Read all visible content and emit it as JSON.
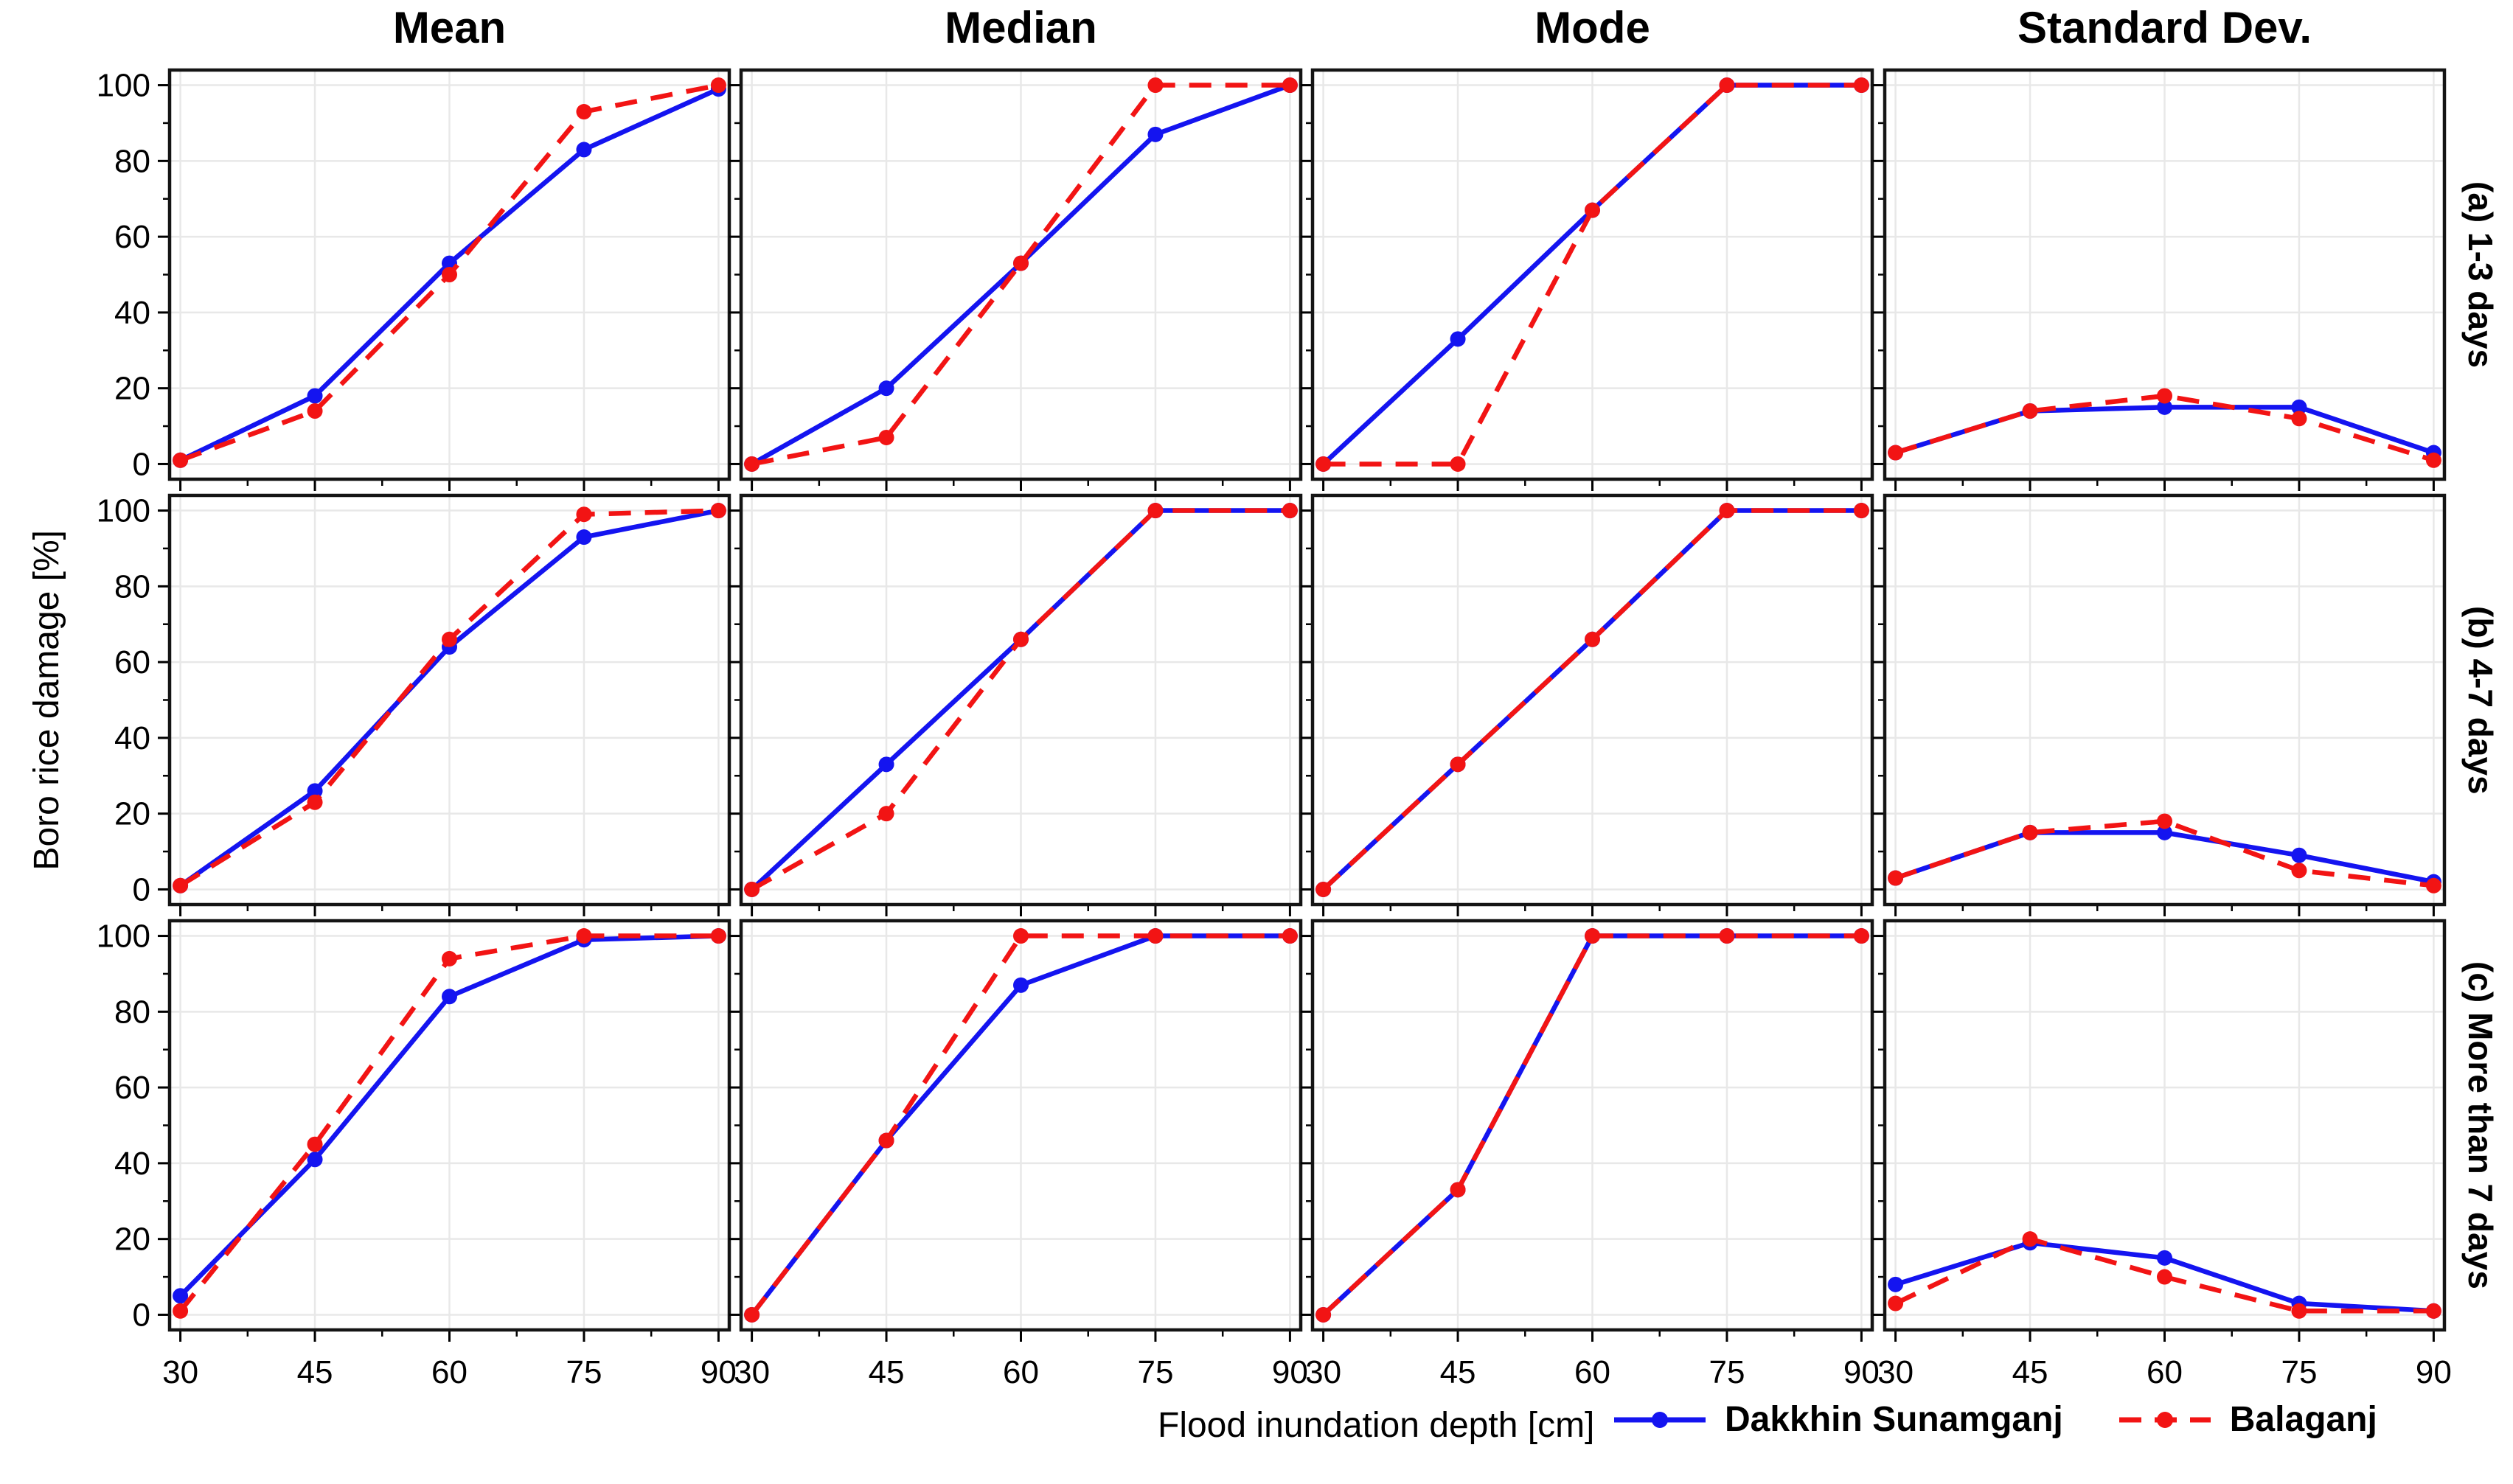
{
  "figure": {
    "col_titles": [
      "Mean",
      "Median",
      "Mode",
      "Standard Dev."
    ],
    "row_labels": [
      "(a) 1-3 days",
      "(b) 4-7 days",
      "(c) More than 7 days"
    ],
    "xlabel": "Flood inundation depth [cm]",
    "ylabel": "Boro rice damage [%]",
    "x_ticks": [
      30,
      45,
      60,
      75,
      90
    ],
    "y_ticks": [
      0,
      20,
      40,
      60,
      80,
      100
    ],
    "x_range": [
      30,
      90
    ],
    "y_range": [
      0,
      100
    ],
    "grid": "on",
    "legend_position": "bottom-right"
  },
  "legend": {
    "entries": [
      {
        "label": "Dakkhin Sunamganj",
        "color": "#1414f0",
        "style": "solid"
      },
      {
        "label": "Balaganj",
        "color": "#f21414",
        "style": "dashed"
      }
    ]
  },
  "colors": {
    "blue": "#1414f0",
    "red": "#f21414",
    "grid": "#e8e8e8",
    "frame": "#141414",
    "background": "#ffffff"
  },
  "chart_data": [
    {
      "type": "line",
      "row": 0,
      "col": 0,
      "row_label": "(a) 1-3 days",
      "col_title": "Mean",
      "x": [
        30,
        45,
        60,
        75,
        90
      ],
      "series": [
        {
          "name": "Dakkhin Sunamganj",
          "values": [
            1,
            18,
            53,
            83,
            99
          ]
        },
        {
          "name": "Balaganj",
          "values": [
            1,
            14,
            50,
            93,
            100
          ]
        }
      ]
    },
    {
      "type": "line",
      "row": 0,
      "col": 1,
      "row_label": "(a) 1-3 days",
      "col_title": "Median",
      "x": [
        30,
        45,
        60,
        75,
        90
      ],
      "series": [
        {
          "name": "Dakkhin Sunamganj",
          "values": [
            0,
            20,
            53,
            87,
            100
          ]
        },
        {
          "name": "Balaganj",
          "values": [
            0,
            7,
            53,
            100,
            100
          ]
        }
      ]
    },
    {
      "type": "line",
      "row": 0,
      "col": 2,
      "row_label": "(a) 1-3 days",
      "col_title": "Mode",
      "x": [
        30,
        45,
        60,
        75,
        90
      ],
      "series": [
        {
          "name": "Dakkhin Sunamganj",
          "values": [
            0,
            33,
            67,
            100,
            100
          ]
        },
        {
          "name": "Balaganj",
          "values": [
            0,
            0,
            67,
            100,
            100
          ]
        }
      ]
    },
    {
      "type": "line",
      "row": 0,
      "col": 3,
      "row_label": "(a) 1-3 days",
      "col_title": "Standard Dev.",
      "x": [
        30,
        45,
        60,
        75,
        90
      ],
      "series": [
        {
          "name": "Dakkhin Sunamganj",
          "values": [
            3,
            14,
            15,
            15,
            3
          ]
        },
        {
          "name": "Balaganj",
          "values": [
            3,
            14,
            18,
            12,
            1
          ]
        }
      ]
    },
    {
      "type": "line",
      "row": 1,
      "col": 0,
      "row_label": "(b) 4-7 days",
      "col_title": "Mean",
      "x": [
        30,
        45,
        60,
        75,
        90
      ],
      "series": [
        {
          "name": "Dakkhin Sunamganj",
          "values": [
            1,
            26,
            64,
            93,
            100
          ]
        },
        {
          "name": "Balaganj",
          "values": [
            1,
            23,
            66,
            99,
            100
          ]
        }
      ]
    },
    {
      "type": "line",
      "row": 1,
      "col": 1,
      "row_label": "(b) 4-7 days",
      "col_title": "Median",
      "x": [
        30,
        45,
        60,
        75,
        90
      ],
      "series": [
        {
          "name": "Dakkhin Sunamganj",
          "values": [
            0,
            33,
            66,
            100,
            100
          ]
        },
        {
          "name": "Balaganj",
          "values": [
            0,
            20,
            66,
            100,
            100
          ]
        }
      ]
    },
    {
      "type": "line",
      "row": 1,
      "col": 2,
      "row_label": "(b) 4-7 days",
      "col_title": "Mode",
      "x": [
        30,
        45,
        60,
        75,
        90
      ],
      "series": [
        {
          "name": "Dakkhin Sunamganj",
          "values": [
            0,
            33,
            66,
            100,
            100
          ]
        },
        {
          "name": "Balaganj",
          "values": [
            0,
            33,
            66,
            100,
            100
          ]
        }
      ]
    },
    {
      "type": "line",
      "row": 1,
      "col": 3,
      "row_label": "(b) 4-7 days",
      "col_title": "Standard Dev.",
      "x": [
        30,
        45,
        60,
        75,
        90
      ],
      "series": [
        {
          "name": "Dakkhin Sunamganj",
          "values": [
            3,
            15,
            15,
            9,
            2
          ]
        },
        {
          "name": "Balaganj",
          "values": [
            3,
            15,
            18,
            5,
            1
          ]
        }
      ]
    },
    {
      "type": "line",
      "row": 2,
      "col": 0,
      "row_label": "(c) More than 7 days",
      "col_title": "Mean",
      "x": [
        30,
        45,
        60,
        75,
        90
      ],
      "series": [
        {
          "name": "Dakkhin Sunamganj",
          "values": [
            5,
            41,
            84,
            99,
            100
          ]
        },
        {
          "name": "Balaganj",
          "values": [
            1,
            45,
            94,
            100,
            100
          ]
        }
      ]
    },
    {
      "type": "line",
      "row": 2,
      "col": 1,
      "row_label": "(c) More than 7 days",
      "col_title": "Median",
      "x": [
        30,
        45,
        60,
        75,
        90
      ],
      "series": [
        {
          "name": "Dakkhin Sunamganj",
          "values": [
            0,
            46,
            87,
            100,
            100
          ]
        },
        {
          "name": "Balaganj",
          "values": [
            0,
            46,
            100,
            100,
            100
          ]
        }
      ]
    },
    {
      "type": "line",
      "row": 2,
      "col": 2,
      "row_label": "(c) More than 7 days",
      "col_title": "Mode",
      "x": [
        30,
        45,
        60,
        75,
        90
      ],
      "series": [
        {
          "name": "Dakkhin Sunamganj",
          "values": [
            0,
            33,
            100,
            100,
            100
          ]
        },
        {
          "name": "Balaganj",
          "values": [
            0,
            33,
            100,
            100,
            100
          ]
        }
      ]
    },
    {
      "type": "line",
      "row": 2,
      "col": 3,
      "row_label": "(c) More than 7 days",
      "col_title": "Standard Dev.",
      "x": [
        30,
        45,
        60,
        75,
        90
      ],
      "series": [
        {
          "name": "Dakkhin Sunamganj",
          "values": [
            8,
            19,
            15,
            3,
            1
          ]
        },
        {
          "name": "Balaganj",
          "values": [
            3,
            20,
            10,
            1,
            1
          ]
        }
      ]
    }
  ]
}
